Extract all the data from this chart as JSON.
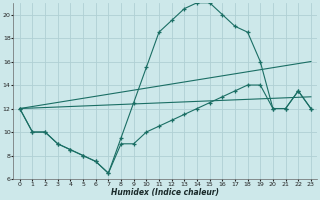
{
  "xlabel": "Humidex (Indice chaleur)",
  "bg_color": "#cde8ea",
  "grid_color": "#b0d0d4",
  "line_color": "#1a6e64",
  "xlim": [
    -0.5,
    23.5
  ],
  "ylim": [
    6,
    21
  ],
  "xticks": [
    0,
    1,
    2,
    3,
    4,
    5,
    6,
    7,
    8,
    9,
    10,
    11,
    12,
    13,
    14,
    15,
    16,
    17,
    18,
    19,
    20,
    21,
    22,
    23
  ],
  "yticks": [
    6,
    8,
    10,
    12,
    14,
    16,
    18,
    20
  ],
  "series": [
    {
      "x": [
        0,
        1,
        2,
        3,
        4,
        5,
        6,
        7,
        8,
        9,
        10,
        11,
        12,
        13,
        14,
        15,
        16,
        17,
        18,
        19,
        20,
        21,
        22,
        23
      ],
      "y": [
        12,
        10,
        10,
        9,
        8.5,
        8,
        7.5,
        6.5,
        9.5,
        12.5,
        15.5,
        18.5,
        19.5,
        20.5,
        21.0,
        21.0,
        20.0,
        19.0,
        18.5,
        16.0,
        12,
        12,
        13.5,
        12
      ],
      "markers": true
    },
    {
      "x": [
        0,
        1,
        2,
        3,
        4,
        5,
        6,
        7,
        8,
        9,
        10,
        11,
        12,
        13,
        14,
        15,
        16,
        17,
        18,
        19,
        20,
        21,
        22,
        23
      ],
      "y": [
        12,
        10,
        10,
        9,
        8.5,
        8,
        7.5,
        6.5,
        9.0,
        9.0,
        10.0,
        10.5,
        11.0,
        11.5,
        12.0,
        12.5,
        13.0,
        13.5,
        14.0,
        14.0,
        12.0,
        12.0,
        13.5,
        12.0
      ],
      "markers": true
    },
    {
      "x": [
        0,
        23
      ],
      "y": [
        12,
        16
      ],
      "markers": false
    },
    {
      "x": [
        0,
        23
      ],
      "y": [
        12,
        13
      ],
      "markers": false
    }
  ]
}
